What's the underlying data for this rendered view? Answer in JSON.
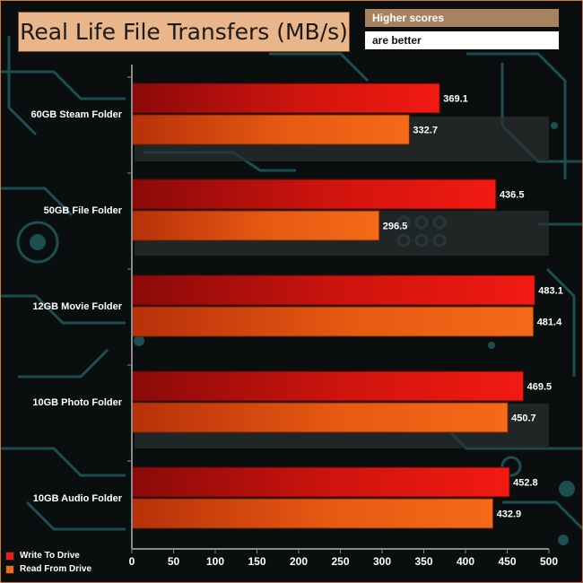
{
  "header": {
    "title": "Real Life File Transfers (MB/s)",
    "note_line1": "Higher scores",
    "note_line2": "are better"
  },
  "legend": [
    {
      "label": "Write To  Drive",
      "color": "#e8201a"
    },
    {
      "label": "Read From  Drive",
      "color": "#f06a1c"
    }
  ],
  "chart_data": {
    "type": "bar",
    "orientation": "horizontal",
    "title": "Real Life File Transfers (MB/s)",
    "categories": [
      "60GB Steam Folder",
      "50GB File Folder",
      "12GB Movie Folder",
      "10GB Photo Folder",
      "10GB Audio Folder"
    ],
    "series": [
      {
        "name": "Write To  Drive",
        "values": [
          369.1,
          436.5,
          483.1,
          469.5,
          452.8
        ],
        "color": "#e8201a"
      },
      {
        "name": "Read From  Drive",
        "values": [
          332.7,
          296.5,
          481.4,
          450.7,
          432.9
        ],
        "color": "#f06a1c"
      }
    ],
    "xlim": [
      0,
      500
    ],
    "xticks": [
      0,
      50,
      100,
      150,
      200,
      250,
      300,
      350,
      400,
      450,
      500
    ],
    "grid": false,
    "legend_position": "bottom-left"
  }
}
